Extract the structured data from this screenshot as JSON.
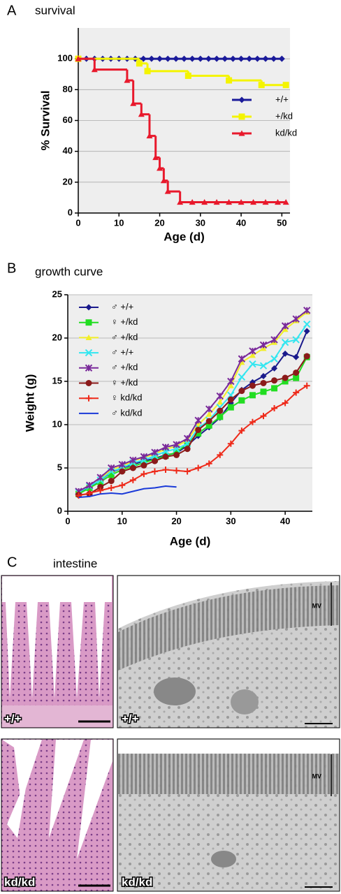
{
  "chart_data": [
    {
      "type": "line",
      "step": true,
      "panel": "A",
      "title": "survival",
      "x_label": "Age (d)",
      "y_label": "% Survival",
      "xlim": [
        0,
        52
      ],
      "ylim": [
        0,
        120
      ],
      "xticks": [
        0,
        10,
        20,
        30,
        40,
        50
      ],
      "yticks": [
        0,
        20,
        40,
        60,
        80,
        100
      ],
      "grid": true,
      "legend": "center-right",
      "series": [
        {
          "name": "+/+",
          "color": "#1a1a9a",
          "marker": "diamond",
          "x": [
            0,
            2,
            4,
            6,
            8,
            10,
            12,
            14,
            16,
            18,
            20,
            22,
            24,
            26,
            28,
            30,
            32,
            34,
            36,
            38,
            40,
            42,
            44,
            46,
            48,
            50
          ],
          "values": [
            100,
            100,
            100,
            100,
            100,
            100,
            100,
            100,
            100,
            100,
            100,
            100,
            100,
            100,
            100,
            100,
            100,
            100,
            100,
            100,
            100,
            100,
            100,
            100,
            100,
            100
          ]
        },
        {
          "name": "+/kd",
          "color": "#f4f400",
          "marker": "square",
          "x": [
            0,
            15,
            17,
            27,
            37,
            45,
            51
          ],
          "values": [
            100,
            97,
            92,
            89,
            86,
            83,
            83
          ]
        },
        {
          "name": "kd/kd",
          "color": "#e8192c",
          "marker": "triangle",
          "x": [
            0,
            4,
            12,
            13.5,
            15.5,
            17.5,
            19,
            20,
            21,
            22,
            25,
            28,
            31,
            34,
            37,
            40,
            43,
            46,
            49,
            51
          ],
          "values": [
            100,
            93,
            86,
            71,
            64,
            50,
            36,
            29,
            21,
            14,
            7,
            7,
            7,
            7,
            7,
            7,
            7,
            7,
            7,
            7
          ]
        }
      ]
    },
    {
      "type": "line",
      "panel": "B",
      "title": "growth curve",
      "x_label": "Age (d)",
      "y_label": "Weight (g)",
      "xlim": [
        0,
        45
      ],
      "ylim": [
        0,
        25
      ],
      "xticks": [
        0,
        10,
        20,
        30,
        40
      ],
      "yticks": [
        0,
        5,
        10,
        15,
        20,
        25
      ],
      "grid": true,
      "legend": "upper-left",
      "series": [
        {
          "name": "♂ +/+",
          "color": "#1a1a8c",
          "marker": "diamond",
          "x": [
            2,
            4,
            6,
            8,
            10,
            12,
            14,
            16,
            18,
            20,
            22,
            24,
            26,
            28,
            30,
            32,
            34,
            36,
            38,
            40,
            42,
            44
          ],
          "values": [
            2.2,
            2.8,
            3.6,
            4.5,
            5.0,
            5.4,
            5.8,
            6.1,
            6.5,
            6.7,
            7.6,
            8.7,
            9.7,
            10.8,
            12.5,
            14.0,
            14.9,
            15.6,
            16.5,
            18.2,
            17.8,
            20.8
          ]
        },
        {
          "name": "♀ +/kd",
          "color": "#22dd22",
          "marker": "square",
          "x": [
            2,
            4,
            6,
            8,
            10,
            12,
            14,
            16,
            18,
            20,
            22,
            24,
            26,
            28,
            30,
            32,
            34,
            36,
            38,
            40,
            42,
            44
          ],
          "values": [
            2.0,
            2.7,
            3.4,
            4.2,
            4.8,
            5.2,
            5.6,
            6.0,
            6.4,
            6.8,
            7.8,
            9.0,
            9.9,
            10.9,
            12.0,
            12.8,
            13.4,
            13.8,
            14.2,
            15.0,
            15.4,
            17.8
          ]
        },
        {
          "name": "♂ +/kd",
          "color": "#f2ee2a",
          "marker": "triangle",
          "x": [
            2,
            4,
            6,
            8,
            10,
            12,
            14,
            16,
            18,
            20,
            22,
            24,
            26,
            28,
            30,
            32,
            34,
            36,
            38,
            40,
            42,
            44
          ],
          "values": [
            2.3,
            3.0,
            3.8,
            4.8,
            5.2,
            5.8,
            6.2,
            6.6,
            7.2,
            7.5,
            8.2,
            10.0,
            11.2,
            12.6,
            14.5,
            17.2,
            18.0,
            18.8,
            19.5,
            21.0,
            22.0,
            23.0
          ]
        },
        {
          "name": "♂ +/+",
          "color": "#33e6f0",
          "marker": "x",
          "x": [
            2,
            4,
            6,
            8,
            10,
            12,
            14,
            16,
            18,
            20,
            22,
            24,
            26,
            28,
            30,
            32,
            34,
            36,
            38,
            40,
            42,
            44
          ],
          "values": [
            2.2,
            2.9,
            3.6,
            4.6,
            5.0,
            5.6,
            5.9,
            6.4,
            6.9,
            7.2,
            7.8,
            9.6,
            10.5,
            12.0,
            13.4,
            15.5,
            17.0,
            16.8,
            17.6,
            19.5,
            19.8,
            21.6
          ]
        },
        {
          "name": "♂ +/kd",
          "color": "#7a2a9a",
          "marker": "star",
          "x": [
            2,
            4,
            6,
            8,
            10,
            12,
            14,
            16,
            18,
            20,
            22,
            24,
            26,
            28,
            30,
            32,
            34,
            36,
            38,
            40,
            42,
            44
          ],
          "values": [
            2.3,
            3.0,
            3.9,
            5.0,
            5.4,
            5.9,
            6.3,
            6.8,
            7.4,
            7.7,
            8.4,
            10.5,
            11.8,
            13.3,
            15.0,
            17.6,
            18.5,
            19.2,
            19.8,
            21.4,
            22.2,
            23.2
          ]
        },
        {
          "name": "♀ +/kd",
          "color": "#8b1a1a",
          "marker": "circle",
          "x": [
            2,
            4,
            6,
            8,
            10,
            12,
            14,
            16,
            18,
            20,
            22,
            24,
            26,
            28,
            30,
            32,
            34,
            36,
            38,
            40,
            42,
            44
          ],
          "values": [
            1.9,
            2.0,
            2.8,
            3.5,
            4.6,
            5.0,
            5.3,
            5.8,
            6.3,
            6.5,
            7.2,
            9.4,
            10.4,
            11.6,
            12.9,
            13.9,
            14.5,
            14.8,
            15.1,
            15.4,
            16.0,
            17.9
          ]
        },
        {
          "name": "♀ kd/kd",
          "color": "#ee2a1a",
          "marker": "plus",
          "x": [
            2,
            4,
            6,
            8,
            10,
            12,
            14,
            16,
            18,
            20,
            22,
            24,
            26,
            28,
            30,
            32,
            34,
            36,
            38,
            40,
            42,
            44
          ],
          "values": [
            1.8,
            2.1,
            2.4,
            2.7,
            3.0,
            3.6,
            4.3,
            4.6,
            4.8,
            4.7,
            4.6,
            5.0,
            5.5,
            6.5,
            7.8,
            9.3,
            10.3,
            11.0,
            11.9,
            12.5,
            13.7,
            14.5
          ]
        },
        {
          "name": "♂ kd/kd",
          "color": "#1a3ad8",
          "marker": "none",
          "x": [
            2,
            4,
            6,
            8,
            10,
            12,
            14,
            16,
            18,
            20
          ],
          "values": [
            1.6,
            1.7,
            2.0,
            2.1,
            2.0,
            2.3,
            2.6,
            2.7,
            2.9,
            2.8
          ]
        }
      ]
    }
  ],
  "panel_c": {
    "panel": "C",
    "title": "intestine",
    "images": [
      {
        "label": "+/+"
      },
      {
        "label": "+/+",
        "annotation": "MV"
      },
      {
        "label": "kd/kd"
      },
      {
        "label": "kd/kd",
        "annotation": "MV"
      }
    ]
  }
}
